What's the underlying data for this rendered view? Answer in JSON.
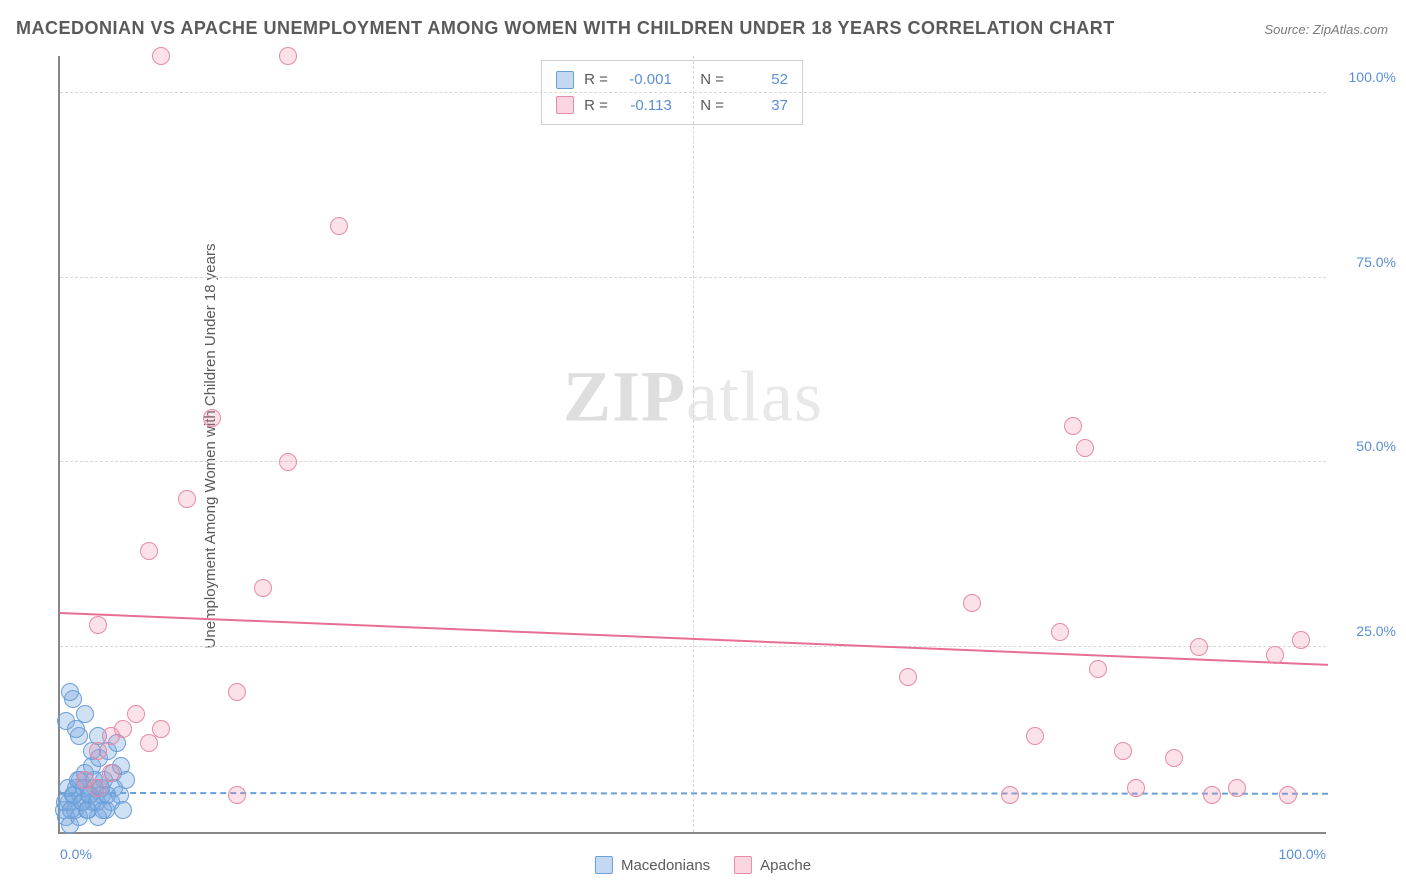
{
  "title": "MACEDONIAN VS APACHE UNEMPLOYMENT AMONG WOMEN WITH CHILDREN UNDER 18 YEARS CORRELATION CHART",
  "source": "Source: ZipAtlas.com",
  "y_axis_label": "Unemployment Among Women with Children Under 18 years",
  "watermark_prefix": "ZIP",
  "watermark_suffix": "atlas",
  "chart": {
    "type": "scatter",
    "xlim": [
      0,
      100
    ],
    "ylim": [
      0,
      105
    ],
    "x_ticks": [
      0,
      50,
      100
    ],
    "x_tick_labels": [
      "0.0%",
      "",
      "100.0%"
    ],
    "y_ticks": [
      25,
      50,
      75,
      100
    ],
    "y_tick_labels": [
      "25.0%",
      "50.0%",
      "75.0%",
      "100.0%"
    ],
    "grid_color": "#d8d8d8",
    "background_color": "#ffffff",
    "axis_color": "#888888",
    "point_radius": 9,
    "series": [
      {
        "name": "Macedonians",
        "key": "mac",
        "fill": "rgba(122,170,224,0.35)",
        "stroke": "#6a9fd8",
        "R": "-0.001",
        "N": "52",
        "trend": {
          "y_at_x0": 5.2,
          "y_at_x100": 5.1,
          "dash": true,
          "color": "#6a9fd8"
        },
        "points": [
          [
            0.3,
            3
          ],
          [
            0.5,
            2
          ],
          [
            0.7,
            4
          ],
          [
            0.8,
            1
          ],
          [
            1.0,
            5
          ],
          [
            1.2,
            3
          ],
          [
            1.3,
            6
          ],
          [
            1.5,
            2
          ],
          [
            1.6,
            7
          ],
          [
            1.8,
            4
          ],
          [
            2.0,
            8
          ],
          [
            2.1,
            3
          ],
          [
            2.3,
            5
          ],
          [
            2.5,
            9
          ],
          [
            2.6,
            4
          ],
          [
            2.8,
            6
          ],
          [
            3.0,
            2
          ],
          [
            3.1,
            10
          ],
          [
            3.3,
            5
          ],
          [
            3.5,
            7
          ],
          [
            3.6,
            3
          ],
          [
            3.8,
            11
          ],
          [
            4.0,
            4
          ],
          [
            4.2,
            8
          ],
          [
            4.3,
            6
          ],
          [
            4.5,
            12
          ],
          [
            4.7,
            5
          ],
          [
            4.8,
            9
          ],
          [
            5.0,
            3
          ],
          [
            5.2,
            7
          ],
          [
            0.5,
            15
          ],
          [
            1.0,
            18
          ],
          [
            1.5,
            13
          ],
          [
            2.0,
            16
          ],
          [
            0.8,
            19
          ],
          [
            1.3,
            14
          ],
          [
            2.5,
            11
          ],
          [
            3.0,
            13
          ],
          [
            0.4,
            4
          ],
          [
            0.6,
            6
          ],
          [
            0.9,
            3
          ],
          [
            1.1,
            5
          ],
          [
            1.4,
            7
          ],
          [
            1.7,
            4
          ],
          [
            1.9,
            6
          ],
          [
            2.2,
            3
          ],
          [
            2.4,
            5
          ],
          [
            2.7,
            7
          ],
          [
            2.9,
            4
          ],
          [
            3.2,
            6
          ],
          [
            3.4,
            3
          ],
          [
            3.7,
            5
          ]
        ]
      },
      {
        "name": "Apache",
        "key": "apa",
        "fill": "rgba(240,140,165,0.25)",
        "stroke": "#e88aa5",
        "R": "-0.113",
        "N": "37",
        "trend": {
          "y_at_x0": 29.5,
          "y_at_x100": 22.5,
          "dash": false,
          "color": "#e86f94"
        },
        "points": [
          [
            8,
            105
          ],
          [
            18,
            105
          ],
          [
            22,
            82
          ],
          [
            12,
            56
          ],
          [
            10,
            45
          ],
          [
            7,
            38
          ],
          [
            18,
            50
          ],
          [
            16,
            33
          ],
          [
            3,
            28
          ],
          [
            14,
            19
          ],
          [
            6,
            16
          ],
          [
            5,
            14
          ],
          [
            4,
            13
          ],
          [
            8,
            14
          ],
          [
            3,
            11
          ],
          [
            7,
            12
          ],
          [
            2,
            7
          ],
          [
            4,
            8
          ],
          [
            3,
            6
          ],
          [
            14,
            5
          ],
          [
            67,
            21
          ],
          [
            72,
            31
          ],
          [
            77,
            13
          ],
          [
            79,
            27
          ],
          [
            80,
            55
          ],
          [
            81,
            52
          ],
          [
            82,
            22
          ],
          [
            84,
            11
          ],
          [
            85,
            6
          ],
          [
            88,
            10
          ],
          [
            90,
            25
          ],
          [
            91,
            5
          ],
          [
            93,
            6
          ],
          [
            96,
            24
          ],
          [
            97,
            5
          ],
          [
            98,
            26
          ],
          [
            75,
            5
          ]
        ]
      }
    ]
  },
  "legend": {
    "items": [
      {
        "key": "mac",
        "label": "Macedonians"
      },
      {
        "key": "apa",
        "label": "Apache"
      }
    ]
  },
  "stats_labels": {
    "R": "R =",
    "N": "N ="
  }
}
